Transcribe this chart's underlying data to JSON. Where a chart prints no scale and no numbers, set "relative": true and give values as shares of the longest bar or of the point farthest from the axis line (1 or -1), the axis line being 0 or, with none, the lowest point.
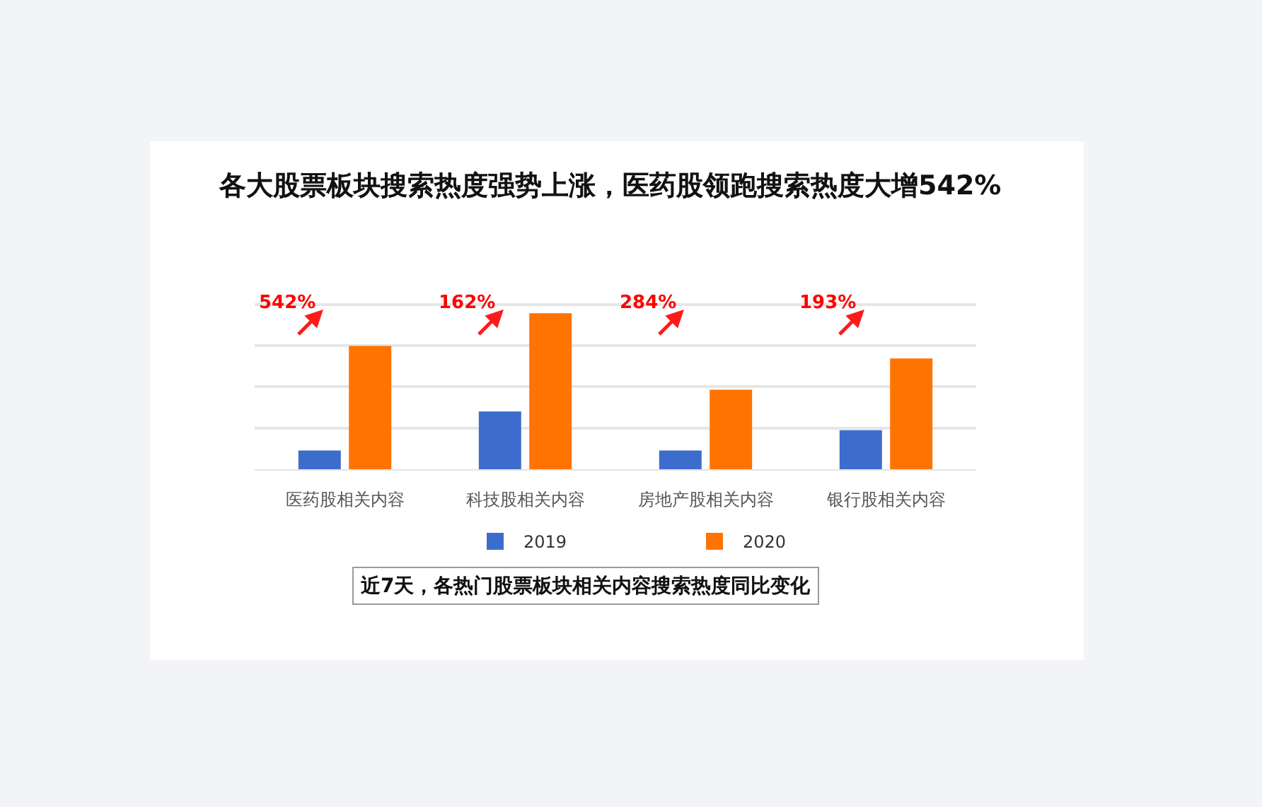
{
  "chart_data": {
    "type": "bar",
    "title": "各大股票板块搜索热度强势上涨，医药股领跑搜索热度大增542%",
    "categories": [
      "医药股相关内容",
      "科技股相关内容",
      "房地产股相关内容",
      "银行股相关内容"
    ],
    "series": [
      {
        "name": "2019",
        "color": "#3c6dcc",
        "values": [
          0.12,
          0.37,
          0.12,
          0.25
        ]
      },
      {
        "name": "2020",
        "color": "#ff7300",
        "values": [
          0.79,
          1,
          0.51,
          0.71
        ]
      }
    ],
    "relative": true,
    "grid": "y",
    "legend": "bottom",
    "annotations": [
      "542%",
      "162%",
      "284%",
      "193%",
      "近7天，各热门股票板块相关内容搜索热度同比变化"
    ]
  }
}
